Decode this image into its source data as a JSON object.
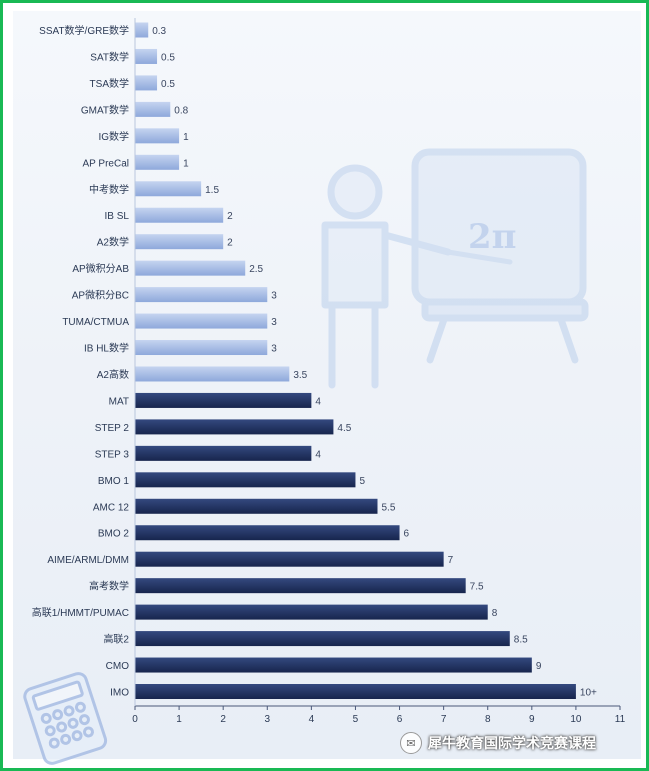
{
  "chart_data": {
    "type": "bar",
    "orientation": "horizontal",
    "categories": [
      "SSAT数学/GRE数学",
      "SAT数学",
      "TSA数学",
      "GMAT数学",
      "IG数学",
      "AP PreCal",
      "中考数学",
      "IB SL",
      "A2数学",
      "AP微积分AB",
      "AP微积分BC",
      "TUMA/CTMUA",
      "IB HL数学",
      "A2高数",
      "MAT",
      "STEP 2",
      "STEP 3",
      "BMO 1",
      "AMC 12",
      "BMO 2",
      "AIME/ARML/DMM",
      "高考数学",
      "高联1/HMMT/PUMAC",
      "高联2",
      "CMO",
      "IMO"
    ],
    "values": [
      0.3,
      0.5,
      0.5,
      0.8,
      1,
      1,
      1.5,
      2,
      2,
      2.5,
      3,
      3,
      3,
      3.5,
      4,
      4.5,
      4,
      5,
      5.5,
      6,
      7,
      7.5,
      8,
      8.5,
      9,
      10
    ],
    "value_labels": [
      "0.3",
      "0.5",
      "0.5",
      "0.8",
      "1",
      "1",
      "1.5",
      "2",
      "2",
      "2.5",
      "3",
      "3",
      "3",
      "3.5",
      "4",
      "4.5",
      "4",
      "5",
      "5.5",
      "6",
      "7",
      "7.5",
      "8",
      "8.5",
      "9",
      "10+"
    ],
    "bar_group": [
      "light",
      "light",
      "light",
      "light",
      "light",
      "light",
      "light",
      "light",
      "light",
      "light",
      "light",
      "light",
      "light",
      "light",
      "dark",
      "dark",
      "dark",
      "dark",
      "dark",
      "dark",
      "dark",
      "dark",
      "dark",
      "dark",
      "dark",
      "dark"
    ],
    "xlim": [
      0,
      11
    ],
    "xticks": [
      "0",
      "1",
      "2",
      "3",
      "4",
      "5",
      "6",
      "7",
      "8",
      "9",
      "10",
      "11"
    ],
    "grid": false,
    "title": "",
    "xlabel": "",
    "ylabel": "",
    "colors": {
      "light": "#9fb6e2",
      "dark": "#1e2f5e"
    }
  },
  "watermark": {
    "text": "犀牛教育国际学术竞赛课程",
    "icon": "wechat-icon"
  }
}
